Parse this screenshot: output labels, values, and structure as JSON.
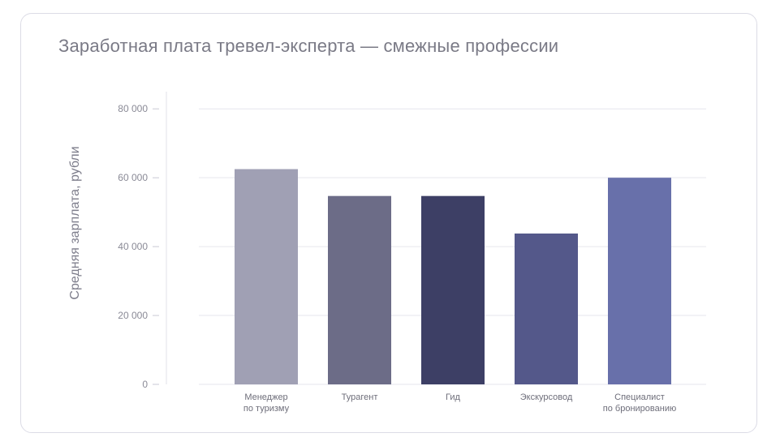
{
  "chart_data": {
    "type": "bar",
    "title": "Заработная плата тревел-эксперта — смежные профессии",
    "ylabel": "Средняя зарплата, рубли",
    "xlabel": "",
    "ylim": [
      0,
      85000
    ],
    "yticks": [
      0,
      20000,
      40000,
      60000,
      80000
    ],
    "ytick_labels": [
      "0",
      "20 000",
      "40 000",
      "60 000",
      "80 000"
    ],
    "categories": [
      [
        "Менеджер",
        "по туризму"
      ],
      [
        "Турагент"
      ],
      [
        "Гид"
      ],
      [
        "Экскурсовод"
      ],
      [
        "Специалист",
        "по бронированию"
      ]
    ],
    "values": [
      62500,
      54700,
      54700,
      43800,
      60000
    ],
    "colors": [
      "#a0a0b4",
      "#6c6c87",
      "#3d3f65",
      "#54588a",
      "#6870aa"
    ],
    "grid": true,
    "legend": "none"
  }
}
